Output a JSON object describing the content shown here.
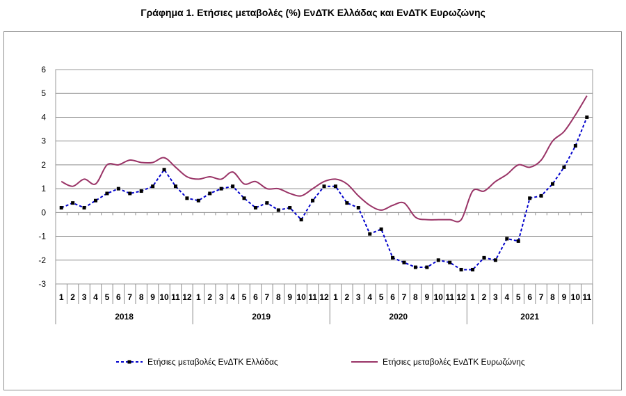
{
  "chart_data": {
    "type": "line",
    "title": "Γράφημα 1. Ετήσιες μεταβολές (%) ΕνΔΤΚ Ελλάδας και ΕνΔΤΚ Ευρωζώνης",
    "xlabel": "",
    "ylabel": "",
    "ylim": [
      -3,
      6
    ],
    "yticks": [
      "6",
      "5",
      "4",
      "3",
      "2",
      "1",
      "0",
      "-1",
      "-2",
      "-3"
    ],
    "years": [
      "2018",
      "2019",
      "2020",
      "2021"
    ],
    "months_per_year": [
      12,
      12,
      12,
      11
    ],
    "categories": [
      "1",
      "2",
      "3",
      "4",
      "5",
      "6",
      "7",
      "8",
      "9",
      "10",
      "11",
      "12",
      "1",
      "2",
      "3",
      "4",
      "5",
      "6",
      "7",
      "8",
      "9",
      "10",
      "11",
      "12",
      "1",
      "2",
      "3",
      "4",
      "5",
      "6",
      "7",
      "8",
      "9",
      "10",
      "11",
      "12",
      "1",
      "2",
      "3",
      "4",
      "5",
      "6",
      "7",
      "8",
      "9",
      "10",
      "11"
    ],
    "series": [
      {
        "name": "Ετήσιες μεταβολές ΕνΔΤΚ Ελλάδας",
        "color": "#0000cc",
        "style": "dashed-markers",
        "values": [
          0.2,
          0.4,
          0.2,
          0.5,
          0.8,
          1.0,
          0.8,
          0.9,
          1.1,
          1.8,
          1.1,
          0.6,
          0.5,
          0.8,
          1.0,
          1.1,
          0.6,
          0.2,
          0.4,
          0.1,
          0.2,
          -0.3,
          0.5,
          1.1,
          1.1,
          0.4,
          0.2,
          -0.9,
          -0.7,
          -1.9,
          -2.1,
          -2.3,
          -2.3,
          -2.0,
          -2.1,
          -2.4,
          -2.4,
          -1.9,
          -2.0,
          -1.1,
          -1.2,
          0.6,
          0.7,
          1.2,
          1.9,
          2.8,
          4.0
        ]
      },
      {
        "name": "Ετήσιες μεταβολές ΕνΔΤΚ Ευρωζώνης",
        "color": "#993366",
        "style": "solid",
        "values": [
          1.3,
          1.1,
          1.4,
          1.2,
          2.0,
          2.0,
          2.2,
          2.1,
          2.1,
          2.3,
          1.9,
          1.5,
          1.4,
          1.5,
          1.4,
          1.7,
          1.2,
          1.3,
          1.0,
          1.0,
          0.8,
          0.7,
          1.0,
          1.3,
          1.4,
          1.2,
          0.7,
          0.3,
          0.1,
          0.3,
          0.4,
          -0.2,
          -0.3,
          -0.3,
          -0.3,
          -0.3,
          0.9,
          0.9,
          1.3,
          1.6,
          2.0,
          1.9,
          2.2,
          3.0,
          3.4,
          4.1,
          4.9
        ]
      }
    ],
    "legend_position": "bottom"
  }
}
